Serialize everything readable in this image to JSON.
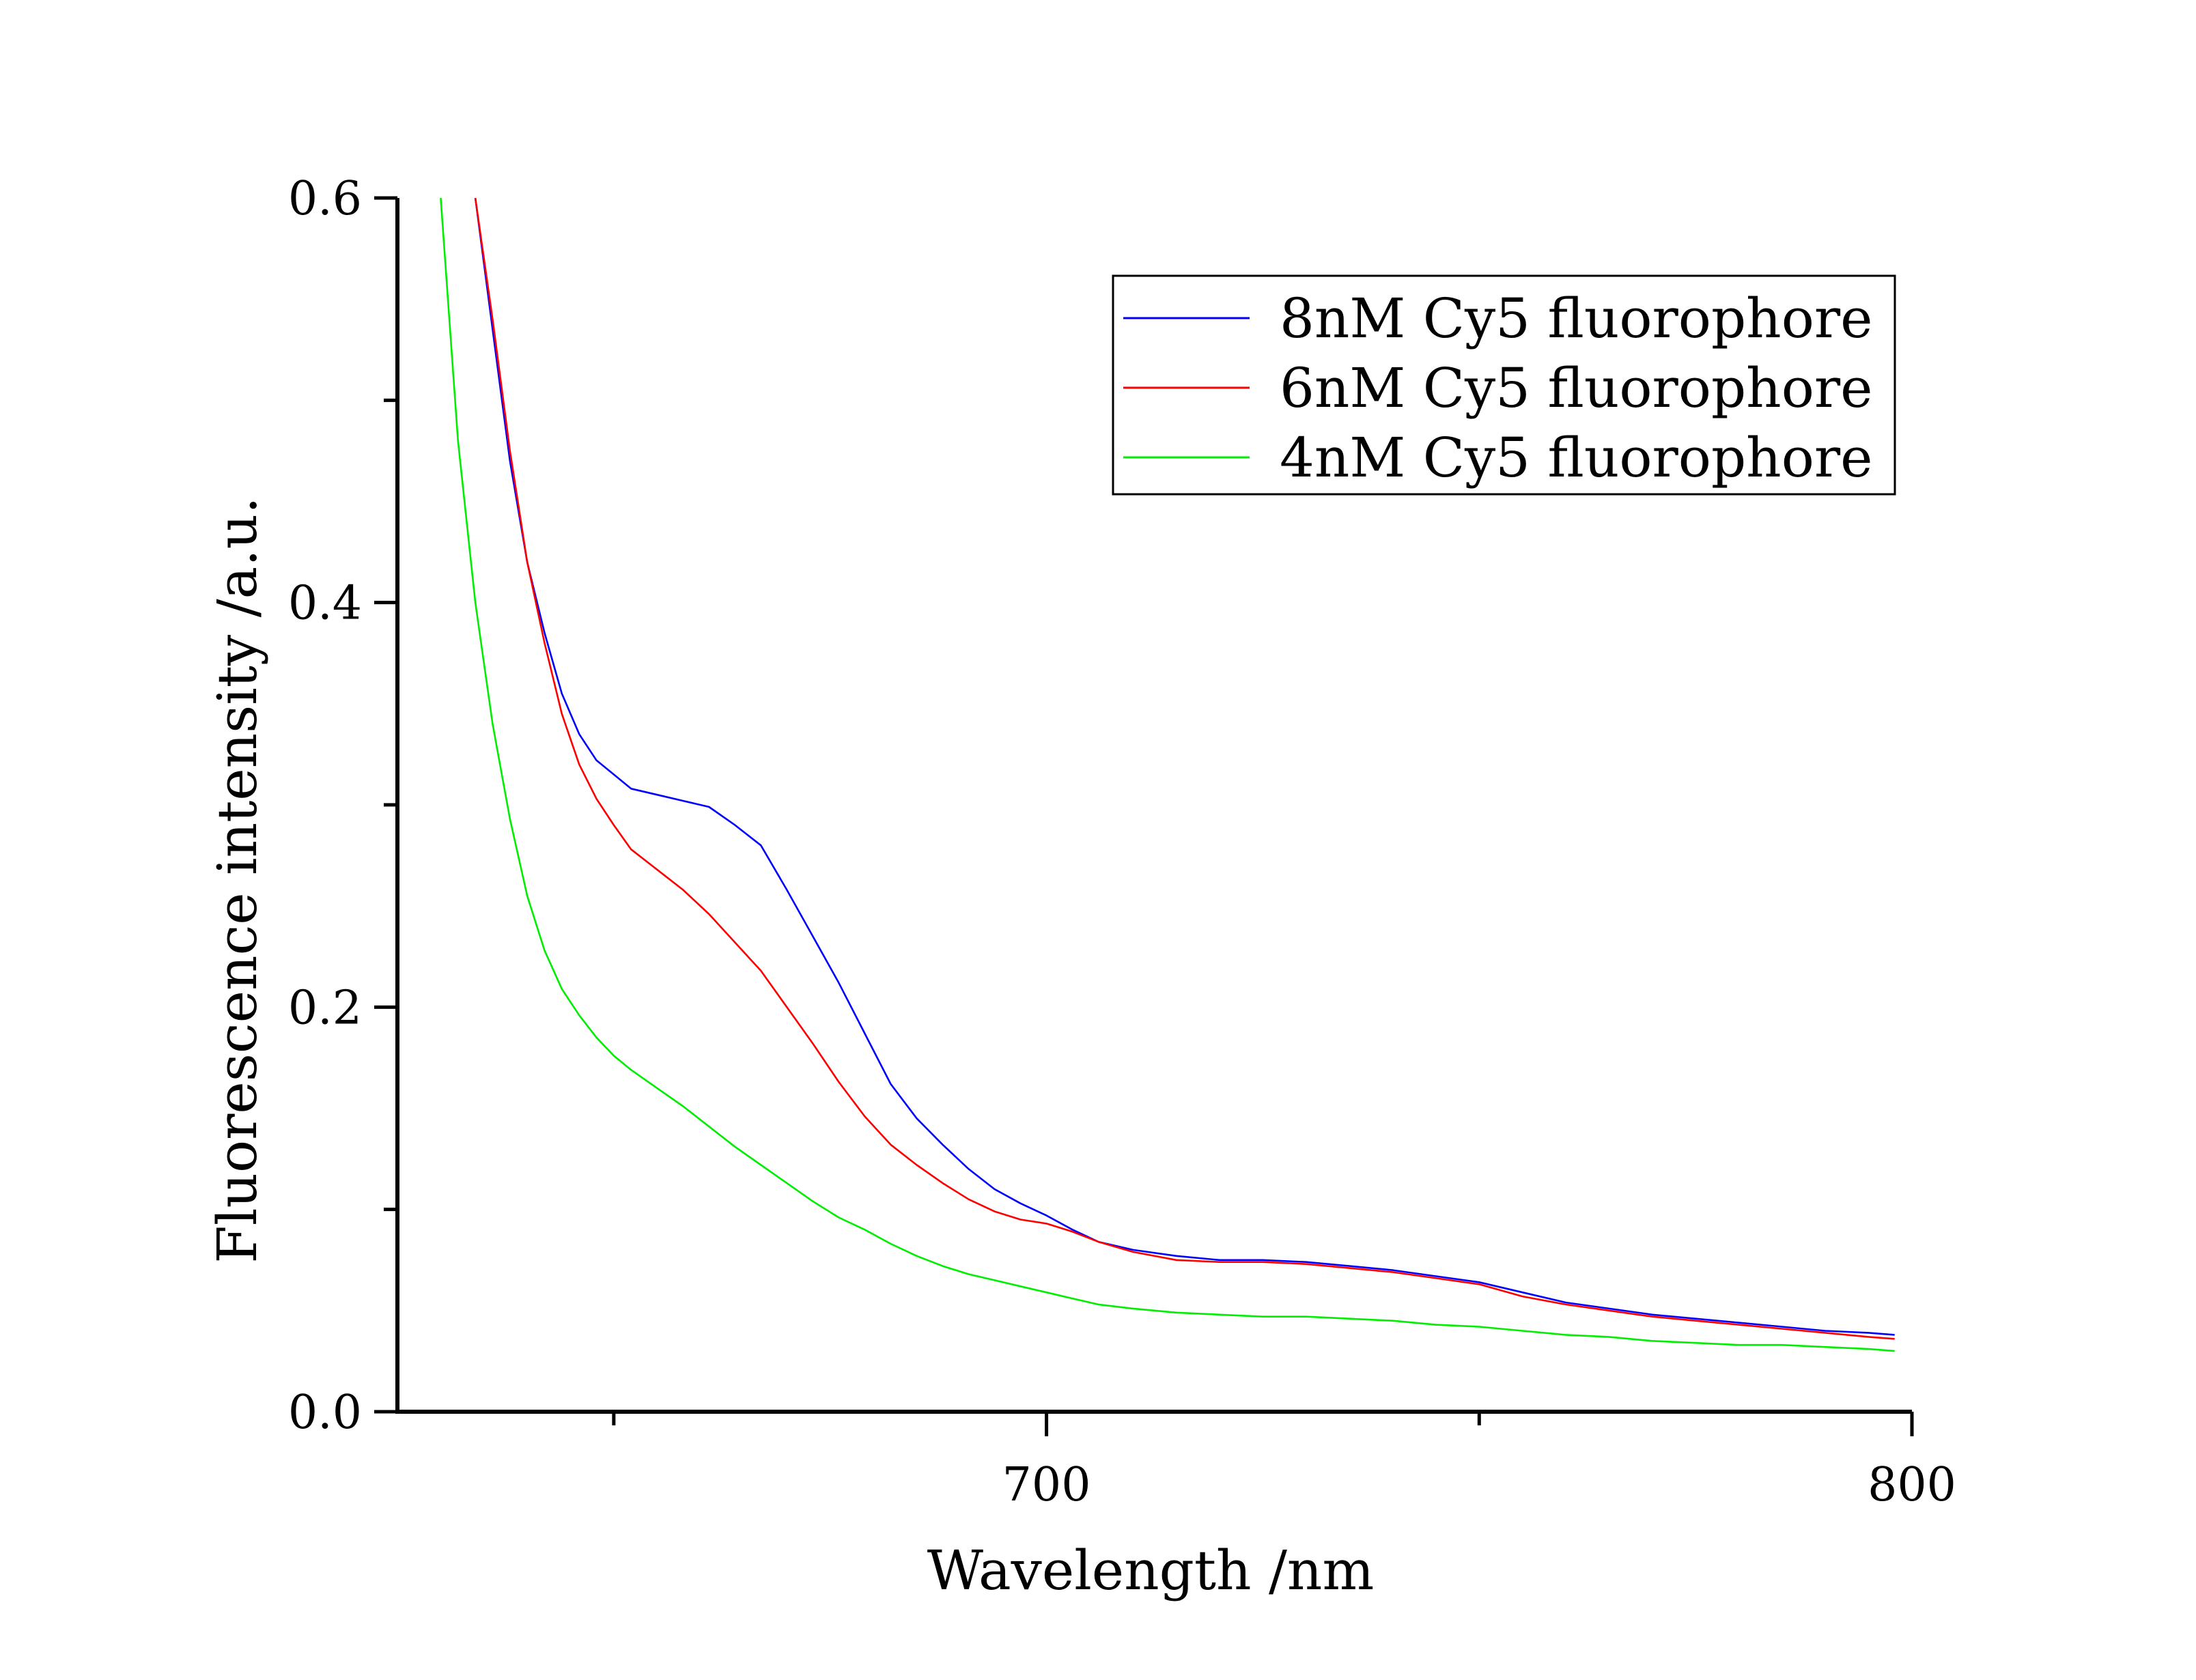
{
  "chart_data": {
    "type": "line",
    "title": "",
    "xlabel": "Wavelength /nm",
    "ylabel": "Fluorescence intensity /a.u.",
    "xlim": [
      625,
      800
    ],
    "ylim": [
      0.0,
      0.6
    ],
    "x_major_ticks": [
      700,
      800
    ],
    "x_minor_ticks": [
      650,
      750
    ],
    "x_tick_labels": [
      "700",
      "800"
    ],
    "y_major_ticks": [
      0.0,
      0.2,
      0.4,
      0.6
    ],
    "y_minor_ticks": [
      0.1,
      0.3,
      0.5
    ],
    "y_tick_labels": [
      "0.0",
      "0.2",
      "0.4",
      "0.6"
    ],
    "grid": false,
    "legend_position": "top-right",
    "series": [
      {
        "name": "8nM Cy5 fluorophore",
        "color": "#0000ff",
        "x": [
          634,
          636,
          638,
          640,
          642,
          644,
          646,
          648,
          650,
          652,
          655,
          658,
          661,
          664,
          667,
          670,
          673,
          676,
          679,
          682,
          685,
          688,
          691,
          694,
          697,
          700,
          703,
          706,
          710,
          715,
          720,
          725,
          730,
          735,
          740,
          745,
          750,
          755,
          760,
          765,
          770,
          775,
          780,
          785,
          790,
          795,
          798
        ],
        "y": [
          0.6,
          0.535,
          0.47,
          0.42,
          0.385,
          0.355,
          0.335,
          0.322,
          0.315,
          0.308,
          0.305,
          0.302,
          0.299,
          0.29,
          0.28,
          0.258,
          0.235,
          0.212,
          0.187,
          0.162,
          0.145,
          0.132,
          0.12,
          0.11,
          0.103,
          0.097,
          0.09,
          0.084,
          0.08,
          0.077,
          0.075,
          0.075,
          0.074,
          0.072,
          0.07,
          0.067,
          0.064,
          0.059,
          0.054,
          0.051,
          0.048,
          0.046,
          0.044,
          0.042,
          0.04,
          0.039,
          0.038
        ]
      },
      {
        "name": "6nM Cy5 fluorophore",
        "color": "#ff0000",
        "x": [
          634,
          636,
          638,
          640,
          642,
          644,
          646,
          648,
          650,
          652,
          655,
          658,
          661,
          664,
          667,
          670,
          673,
          676,
          679,
          682,
          685,
          688,
          691,
          694,
          697,
          700,
          703,
          706,
          710,
          715,
          720,
          725,
          730,
          735,
          740,
          745,
          750,
          755,
          760,
          765,
          770,
          775,
          780,
          785,
          790,
          795,
          798
        ],
        "y": [
          0.6,
          0.54,
          0.475,
          0.42,
          0.38,
          0.345,
          0.32,
          0.303,
          0.29,
          0.278,
          0.268,
          0.258,
          0.246,
          0.232,
          0.218,
          0.2,
          0.182,
          0.163,
          0.146,
          0.132,
          0.122,
          0.113,
          0.105,
          0.099,
          0.095,
          0.093,
          0.089,
          0.084,
          0.079,
          0.075,
          0.074,
          0.074,
          0.073,
          0.071,
          0.069,
          0.066,
          0.063,
          0.057,
          0.053,
          0.05,
          0.047,
          0.045,
          0.043,
          0.041,
          0.039,
          0.037,
          0.036
        ]
      },
      {
        "name": "4nM Cy5 fluorophore",
        "color": "#00ee00",
        "x": [
          630,
          632,
          634,
          636,
          638,
          640,
          642,
          644,
          646,
          648,
          650,
          652,
          655,
          658,
          661,
          664,
          667,
          670,
          673,
          676,
          679,
          682,
          685,
          688,
          691,
          694,
          697,
          700,
          703,
          706,
          710,
          715,
          720,
          725,
          730,
          735,
          740,
          745,
          750,
          755,
          760,
          765,
          770,
          775,
          780,
          785,
          790,
          795,
          798
        ],
        "y": [
          0.6,
          0.48,
          0.4,
          0.34,
          0.293,
          0.255,
          0.228,
          0.209,
          0.196,
          0.185,
          0.176,
          0.169,
          0.16,
          0.151,
          0.141,
          0.131,
          0.122,
          0.113,
          0.104,
          0.096,
          0.09,
          0.083,
          0.077,
          0.072,
          0.068,
          0.065,
          0.062,
          0.059,
          0.056,
          0.053,
          0.051,
          0.049,
          0.048,
          0.047,
          0.047,
          0.046,
          0.045,
          0.043,
          0.042,
          0.04,
          0.038,
          0.037,
          0.035,
          0.034,
          0.033,
          0.033,
          0.032,
          0.031,
          0.03
        ]
      }
    ]
  }
}
